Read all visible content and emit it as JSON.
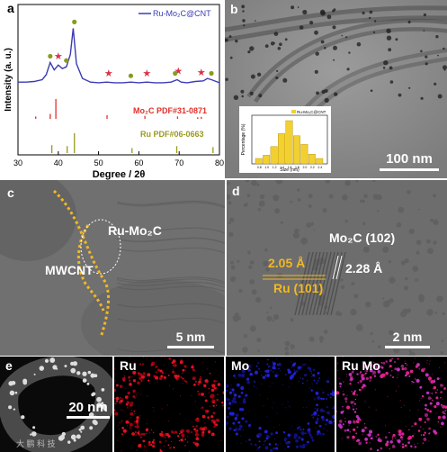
{
  "panels": {
    "a": {
      "label": "a",
      "xlabel": "Degree / 2θ",
      "ylabel": "Intensity (a. u.)",
      "legend": "Ru-Mo₂C@CNT",
      "ref1": "Mo₂C  PDF#31-0871",
      "ref2": "Ru PDF#06-0663",
      "colors": {
        "curve": "#3b3bb5",
        "mo2c": "#e0302a",
        "ru": "#9a9a20",
        "star": "#d8334a",
        "dot": "#8a9a20"
      }
    },
    "b": {
      "label": "b",
      "scalebar": "100 nm",
      "inset_legend": "Ru-Mo₂C@CNT",
      "inset_ylabel": "Percentage (%)",
      "inset_xlabel": "Size (nm)"
    },
    "c": {
      "label": "c",
      "tag1": "Ru-Mo₂C",
      "tag2": "MWCNT",
      "scalebar": "5 nm"
    },
    "d": {
      "label": "d",
      "tag1": "Mo₂C (102)",
      "tag2": "2.05 Å",
      "tag3": "2.28 Å",
      "tag4": "Ru (101)",
      "scalebar": "2 nm"
    },
    "e": {
      "label": "e",
      "scalebar": "20 nm",
      "maps": [
        "Ru",
        "Mo",
        "Ru Mo"
      ],
      "watermark": "大 鹏 科 技"
    }
  },
  "chart_data": [
    {
      "type": "line",
      "xlabel": "Degree / 2θ",
      "ylabel": "Intensity (a. u.)",
      "xlim": [
        30,
        80
      ],
      "x_ticks": [
        30,
        40,
        50,
        60,
        70,
        80
      ],
      "series": [
        {
          "name": "Ru-Mo₂C@CNT",
          "x": [
            30,
            32,
            34,
            36,
            37,
            38,
            39,
            40,
            41,
            42,
            43,
            43.7,
            44.5,
            46,
            48,
            50,
            52,
            54,
            56,
            58,
            60,
            62,
            64,
            66,
            68,
            69.5,
            70.5,
            72,
            74,
            76,
            77,
            78,
            80
          ],
          "y": [
            0.1,
            0.1,
            0.11,
            0.14,
            0.22,
            0.42,
            0.3,
            0.38,
            0.32,
            0.35,
            0.55,
            0.98,
            0.4,
            0.16,
            0.1,
            0.09,
            0.1,
            0.09,
            0.09,
            0.1,
            0.09,
            0.1,
            0.09,
            0.09,
            0.1,
            0.14,
            0.1,
            0.09,
            0.11,
            0.12,
            0.16,
            0.14,
            0.09
          ]
        }
      ],
      "reference_peaks": [
        {
          "name": "Mo₂C  PDF#31-0871",
          "x": [
            34.4,
            38.0,
            39.4,
            52.1,
            61.5,
            69.6,
            74.6,
            75.5
          ],
          "y": [
            0.12,
            0.25,
            1.0,
            0.18,
            0.15,
            0.12,
            0.08,
            0.1
          ]
        },
        {
          "name": "Ru PDF#06-0663",
          "x": [
            38.4,
            42.2,
            44.0,
            58.3,
            69.4,
            78.4
          ],
          "y": [
            0.4,
            0.35,
            1.0,
            0.25,
            0.35,
            0.3
          ]
        }
      ],
      "markers": {
        "star_x": [
          40.0,
          52.5,
          62.0,
          69.8,
          75.5
        ],
        "dot_x": [
          38.0,
          42.0,
          44.0,
          58.0,
          69.0,
          78.0
        ]
      }
    },
    {
      "type": "bar",
      "xlabel": "Size (nm)",
      "ylabel": "Percentage (%)",
      "categories": [
        "0.8",
        "1.0",
        "1.2",
        "1.4",
        "1.6",
        "1.8",
        "2.0",
        "2.2",
        "2.4"
      ],
      "values": [
        5,
        8,
        16,
        28,
        40,
        26,
        18,
        9,
        5
      ],
      "series_name": "Ru-Mo₂C@CNT"
    }
  ]
}
